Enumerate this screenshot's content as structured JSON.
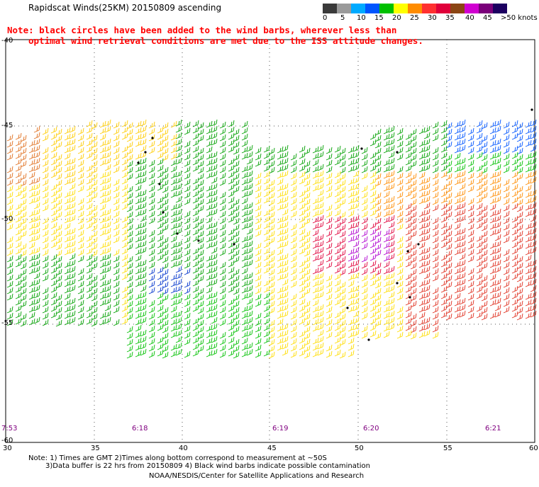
{
  "header": {
    "title": "Rapidscat Winds(25KM) 20150809 ascending"
  },
  "note": {
    "line1": "Note: black circles have been added to the wind barbs, wherever less than",
    "line2": "optimal wind retrieval conditions are met due to the ISS attitude changes."
  },
  "colorbar": {
    "labels": [
      "0",
      "5",
      "10",
      "15",
      "20",
      "25",
      "30",
      "35",
      "40",
      "45",
      ">50 knots"
    ],
    "colors": [
      "#3a3a3a",
      "#9a9a9a",
      "#00aaff",
      "#0055ff",
      "#00c000",
      "#ffff00",
      "#ff8c00",
      "#ff3030",
      "#e0003a",
      "#8b4513",
      "#d000d0",
      "#7a007a",
      "#1c0060"
    ]
  },
  "axes": {
    "x_ticks": [
      "30",
      "35",
      "40",
      "45",
      "50",
      "55",
      "60"
    ],
    "y_ticks": [
      "-40",
      "-45",
      "-50",
      "-55",
      "-60"
    ]
  },
  "times": [
    "7:53",
    "6:18",
    "6:19",
    "6:20",
    "6:21"
  ],
  "footer": {
    "line1": "Note: 1) Times are GMT 2)Times along bottom correspond to measurement at ~50S",
    "line2": "3)Data buffer is 22 hrs from 20150809 4) Black wind barbs indicate possible contamination",
    "line3": "NOAA/NESDIS/Center for Satellite Applications and Research"
  }
}
